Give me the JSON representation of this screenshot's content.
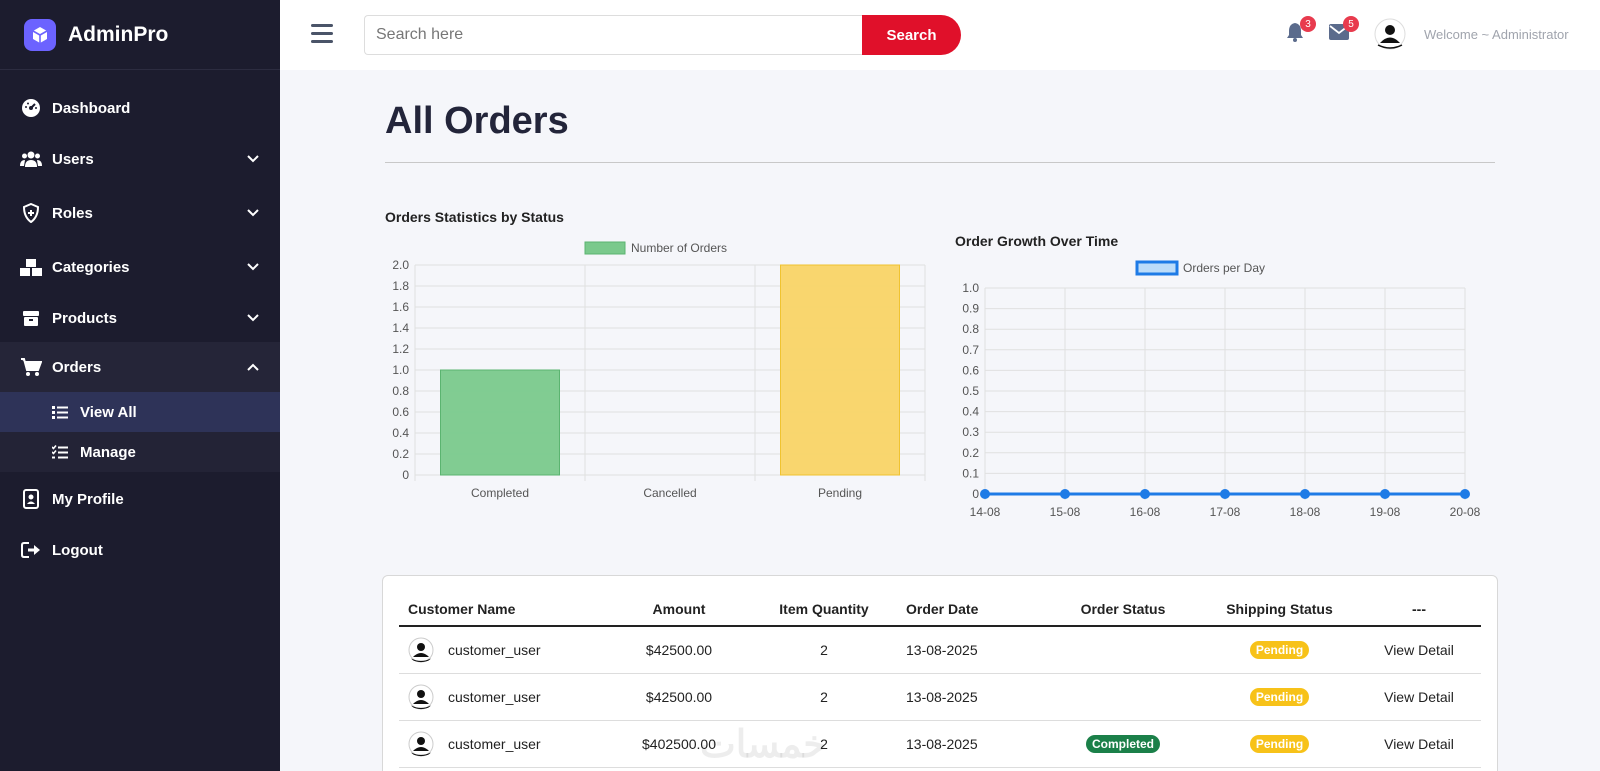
{
  "brand": {
    "title": "AdminPro"
  },
  "sidebar": {
    "items": [
      {
        "label": "Dashboard",
        "icon": "gauge-icon"
      },
      {
        "label": "Users",
        "icon": "users-icon"
      },
      {
        "label": "Roles",
        "icon": "shield-icon"
      },
      {
        "label": "Categories",
        "icon": "boxes-icon"
      },
      {
        "label": "Products",
        "icon": "box-icon"
      },
      {
        "label": "Orders",
        "icon": "cart-icon"
      },
      {
        "label": "My Profile",
        "icon": "id-card-icon"
      },
      {
        "label": "Logout",
        "icon": "logout-icon"
      }
    ],
    "orders_sub": [
      {
        "label": "View All",
        "icon": "list-icon"
      },
      {
        "label": "Manage",
        "icon": "list-check-icon"
      }
    ]
  },
  "topbar": {
    "search_placeholder": "Search here",
    "search_label": "Search",
    "notifications_count": "3",
    "messages_count": "5",
    "welcome": "Welcome ~ Administrator"
  },
  "page": {
    "title": "All Orders"
  },
  "colors": {
    "accent": "#e0102a",
    "completed": "#1b8049",
    "pending": "#f7c219",
    "sidebar": "#1c1c2e"
  },
  "chart_data": [
    {
      "type": "bar",
      "title": "Orders Statistics by Status",
      "legend": "Number of Orders",
      "categories": [
        "Completed",
        "Cancelled",
        "Pending"
      ],
      "values": [
        1,
        0,
        2
      ],
      "ylim": [
        0,
        2.0
      ],
      "yticks": [
        "2.0",
        "1.8",
        "1.6",
        "1.4",
        "1.2",
        "1.0",
        "0.8",
        "0.6",
        "0.4",
        "0.2",
        "0"
      ],
      "colors": [
        "#7ac98c",
        "#7ac98c",
        "#f9d466"
      ]
    },
    {
      "type": "line",
      "title": "Order Growth Over Time",
      "legend": "Orders per Day",
      "x": [
        "14-08",
        "15-08",
        "16-08",
        "17-08",
        "18-08",
        "19-08",
        "20-08"
      ],
      "values": [
        0,
        0,
        0,
        0,
        0,
        0,
        0
      ],
      "ylim": [
        0,
        1.0
      ],
      "yticks": [
        "1.0",
        "0.9",
        "0.8",
        "0.7",
        "0.6",
        "0.5",
        "0.4",
        "0.3",
        "0.2",
        "0.1",
        "0"
      ]
    }
  ],
  "table": {
    "headers": [
      "Customer Name",
      "Amount",
      "Item Quantity",
      "Order Date",
      "Order Status",
      "Shipping Status",
      "---"
    ],
    "rows": [
      {
        "customer": "customer_user",
        "amount": "$42500.00",
        "qty": "2",
        "date": "13-08-2025",
        "status": "",
        "shipping": "Pending",
        "action": "View Detail"
      },
      {
        "customer": "customer_user",
        "amount": "$42500.00",
        "qty": "2",
        "date": "13-08-2025",
        "status": "",
        "shipping": "Pending",
        "action": "View Detail"
      },
      {
        "customer": "customer_user",
        "amount": "$402500.00",
        "qty": "2",
        "date": "13-08-2025",
        "status": "Completed",
        "shipping": "Pending",
        "action": "View Detail"
      }
    ]
  },
  "watermark": "خمسات"
}
